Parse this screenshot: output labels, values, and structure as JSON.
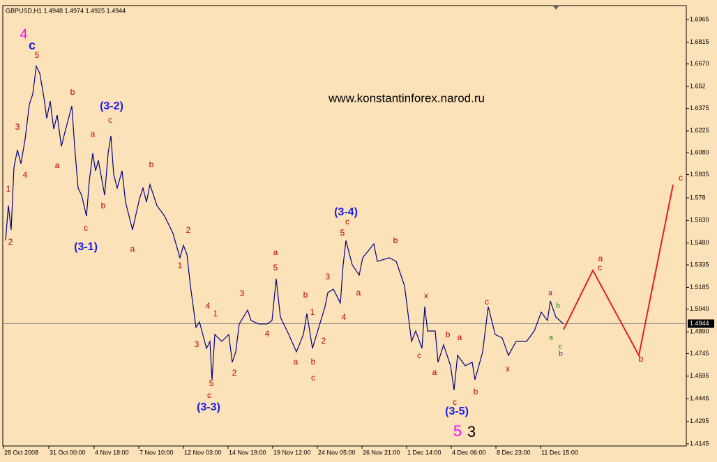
{
  "chart_data": {
    "type": "line",
    "header": "GBPUSD,H1 1.4948 1.4974 1.4925 1.4944",
    "watermark": "www.konstantinforex.narod.ru",
    "current_price": 1.4944,
    "xlim": [
      0,
      980
    ],
    "ylim": [
      1.4131,
      1.7058
    ],
    "xticks": [
      {
        "value": 1,
        "label": "28 Oct 2008"
      },
      {
        "value": 66,
        "label": "31 Oct 00:00"
      },
      {
        "value": 131,
        "label": "4 Nov 18:00"
      },
      {
        "value": 195,
        "label": "7 Nov 10:00"
      },
      {
        "value": 259,
        "label": "12 Nov 03:00"
      },
      {
        "value": 323,
        "label": "14 Nov 19:00"
      },
      {
        "value": 387,
        "label": "19 Nov 12:00"
      },
      {
        "value": 451,
        "label": "24 Nov 05:00"
      },
      {
        "value": 515,
        "label": "26 Nov 21:00"
      },
      {
        "value": 579,
        "label": "1 Dec 14:00"
      },
      {
        "value": 643,
        "label": "4 Dec 06:00"
      },
      {
        "value": 707,
        "label": "8 Dec 23:00"
      },
      {
        "value": 771,
        "label": "11 Dec 15:00"
      }
    ],
    "yticks": [
      1.6965,
      1.6815,
      {
        "value": 1.667,
        "label": "1.6670"
      },
      1.652,
      1.6375,
      1.6225,
      {
        "value": 1.608,
        "label": "1.6080"
      },
      1.5935,
      1.578,
      {
        "value": 1.563,
        "label": "1.5630"
      },
      {
        "value": 1.548,
        "label": "1.5480"
      },
      1.5335,
      1.5185,
      {
        "value": 1.504,
        "label": "1.5040"
      },
      {
        "value": 1.489,
        "label": "1.4890"
      },
      1.4745,
      1.4595,
      1.4445,
      1.4295,
      1.4145
    ],
    "series": [
      {
        "color": "#000080",
        "x": [
          4,
          8,
          12,
          16,
          21,
          26,
          32,
          38,
          43,
          48,
          53,
          59,
          63,
          68,
          73,
          78,
          84,
          89,
          99,
          103,
          108,
          113,
          120,
          124,
          129,
          133,
          137,
          146,
          151,
          155,
          159,
          164,
          171,
          176,
          186,
          196,
          201,
          206,
          211,
          221,
          232,
          244,
          254,
          259,
          264,
          269,
          277,
          282,
          292,
          297,
          300,
          304,
          314,
          324,
          329,
          334,
          339,
          351,
          356,
          367,
          379,
          386,
          392,
          398,
          410,
          421,
          431,
          436,
          444,
          453,
          462,
          466,
          474,
          484,
          488,
          492,
          501,
          511,
          516,
          532,
          537,
          554,
          564,
          576,
          586,
          592,
          601,
          605,
          609,
          620,
          624,
          632,
          642,
          647,
          652,
          663,
          673,
          677,
          688,
          696,
          706,
          716,
          725,
          736,
          751,
          762,
          772,
          781,
          785,
          793,
          804
        ],
        "values": [
          1.5497,
          1.5729,
          1.5567,
          1.5983,
          1.6099,
          1.6007,
          1.6169,
          1.64,
          1.647,
          1.6655,
          1.6608,
          1.6446,
          1.6308,
          1.6423,
          1.6238,
          1.6331,
          1.6122,
          1.6215,
          1.6391,
          1.6122,
          1.5845,
          1.5798,
          1.5659,
          1.5891,
          1.6076,
          1.596,
          1.603,
          1.5798,
          1.6076,
          1.6192,
          1.5937,
          1.5845,
          1.596,
          1.5752,
          1.5567,
          1.5775,
          1.5845,
          1.5752,
          1.5868,
          1.5729,
          1.5659,
          1.5544,
          1.5382,
          1.5465,
          1.5405,
          1.5196,
          1.4919,
          1.4956,
          1.478,
          1.4826,
          1.4571,
          1.4872,
          1.4826,
          1.4872,
          1.4687,
          1.4756,
          1.4942,
          1.5034,
          1.4965,
          1.4942,
          1.4942,
          1.4965,
          1.5243,
          1.4988,
          1.4872,
          1.4756,
          1.4872,
          1.5011,
          1.478,
          1.4919,
          1.5057,
          1.515,
          1.5173,
          1.5081,
          1.5335,
          1.5497,
          1.5335,
          1.5266,
          1.5382,
          1.5474,
          1.5358,
          1.5382,
          1.5358,
          1.5196,
          1.4826,
          1.4895,
          1.478,
          1.5057,
          1.4895,
          1.4895,
          1.4687,
          1.4803,
          1.4664,
          1.4502,
          1.4733,
          1.4664,
          1.4687,
          1.4571,
          1.4756,
          1.5057,
          1.4872,
          1.4849,
          1.4733,
          1.4826,
          1.4826,
          1.4895,
          1.502,
          1.4965,
          1.5094,
          1.4988,
          1.4942
        ]
      },
      {
        "color": "#e02020",
        "x": [
          804,
          846,
          912,
          961
        ],
        "values": [
          1.4905,
          1.5298,
          1.4733,
          1.5868
        ]
      }
    ],
    "annotations": [
      "4",
      "c",
      "5",
      "3",
      "4",
      "1",
      "2",
      "a",
      "b",
      "(3-2)",
      "c",
      "a",
      "b",
      "c",
      "(3-1)",
      "b",
      "a",
      "2",
      "1",
      "4",
      "1",
      "3",
      "5",
      "c",
      "(3-3)",
      "3",
      "4",
      "2",
      "a",
      "5",
      "b",
      "1",
      "a",
      "b",
      "c",
      "2",
      "3",
      "4",
      "(3-4)",
      "c",
      "5",
      "a",
      "b",
      "x",
      "b",
      "a",
      "c",
      "a",
      "c",
      "b",
      "(3-5)",
      "5",
      "3",
      "c",
      "x",
      "a",
      "b",
      "a",
      "c",
      "b",
      "a",
      "c",
      "b",
      "c"
    ]
  }
}
